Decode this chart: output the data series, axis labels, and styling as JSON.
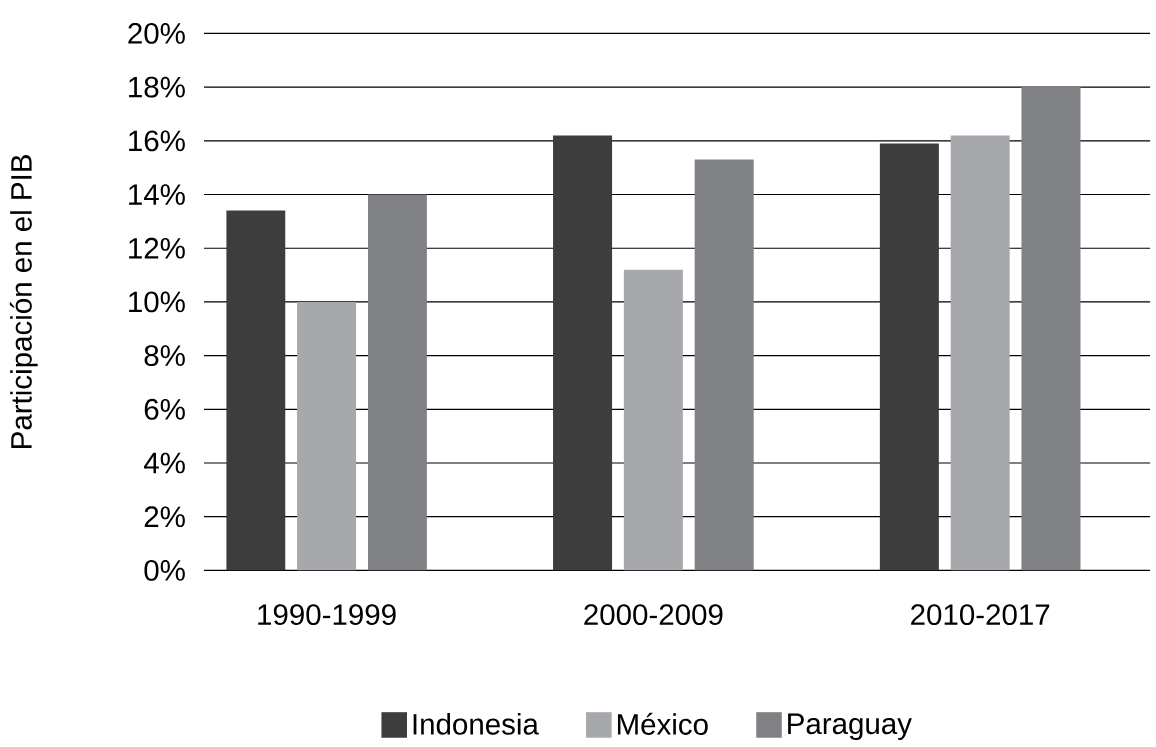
{
  "chart_data": {
    "type": "bar",
    "ylabel": "Participación en el PIB",
    "categories": [
      "1990-1999",
      "2000-2009",
      "2010-2017"
    ],
    "series": [
      {
        "name": "Indonesia",
        "color": "#3d3d3d",
        "values": [
          13.4,
          16.2,
          15.9
        ]
      },
      {
        "name": "México",
        "color": "#a7a8ab",
        "values": [
          10.0,
          11.2,
          16.2
        ]
      },
      {
        "name": "Paraguay",
        "color": "#808184",
        "values": [
          14.0,
          15.3,
          18.0
        ]
      }
    ],
    "ylim": [
      0,
      20
    ],
    "yticks": [
      {
        "value": 0,
        "label": "0%"
      },
      {
        "value": 2,
        "label": "2%"
      },
      {
        "value": 4,
        "label": "4%"
      },
      {
        "value": 6,
        "label": "6%"
      },
      {
        "value": 8,
        "label": "8%"
      },
      {
        "value": 10,
        "label": "10%"
      },
      {
        "value": 12,
        "label": "12%"
      },
      {
        "value": 14,
        "label": "14%"
      },
      {
        "value": 16,
        "label": "16%"
      },
      {
        "value": 18,
        "label": "18%"
      },
      {
        "value": 20,
        "label": "20%"
      }
    ],
    "grid": "y",
    "legend": "bottom"
  }
}
